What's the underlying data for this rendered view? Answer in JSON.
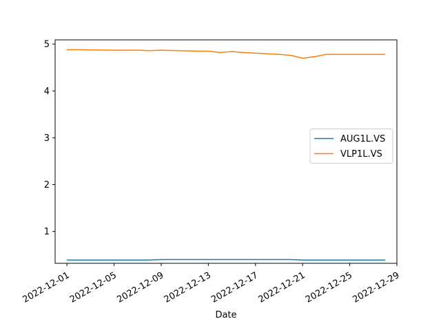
{
  "chart_data": {
    "type": "line",
    "title": "",
    "xlabel": "Date",
    "ylabel": "",
    "ylim": [
      0.32,
      5.09
    ],
    "xlim": [
      "2022-11-30",
      "2022-12-29"
    ],
    "grid": false,
    "legend_position": "center-right",
    "x_ticks": [
      "2022-12-01",
      "2022-12-05",
      "2022-12-09",
      "2022-12-13",
      "2022-12-17",
      "2022-12-21",
      "2022-12-25",
      "2022-12-29"
    ],
    "y_ticks": [
      1,
      2,
      3,
      4,
      5
    ],
    "x": [
      "2022-12-01",
      "2022-12-02",
      "2022-12-05",
      "2022-12-06",
      "2022-12-07",
      "2022-12-08",
      "2022-12-09",
      "2022-12-12",
      "2022-12-13",
      "2022-12-14",
      "2022-12-15",
      "2022-12-16",
      "2022-12-19",
      "2022-12-20",
      "2022-12-21",
      "2022-12-22",
      "2022-12-23",
      "2022-12-27",
      "2022-12-28"
    ],
    "series": [
      {
        "name": "AUG1L.VS",
        "color": "#1f77b4",
        "values": [
          0.39,
          0.39,
          0.39,
          0.39,
          0.39,
          0.39,
          0.4,
          0.4,
          0.4,
          0.4,
          0.4,
          0.4,
          0.4,
          0.4,
          0.39,
          0.39,
          0.39,
          0.39,
          0.39
        ]
      },
      {
        "name": "VLP1L.VS",
        "color": "#ff7f0e",
        "values": [
          4.88,
          4.88,
          4.87,
          4.87,
          4.87,
          4.86,
          4.87,
          4.85,
          4.85,
          4.82,
          4.84,
          4.82,
          4.78,
          4.76,
          4.7,
          4.73,
          4.78,
          4.78,
          4.78
        ]
      }
    ]
  }
}
